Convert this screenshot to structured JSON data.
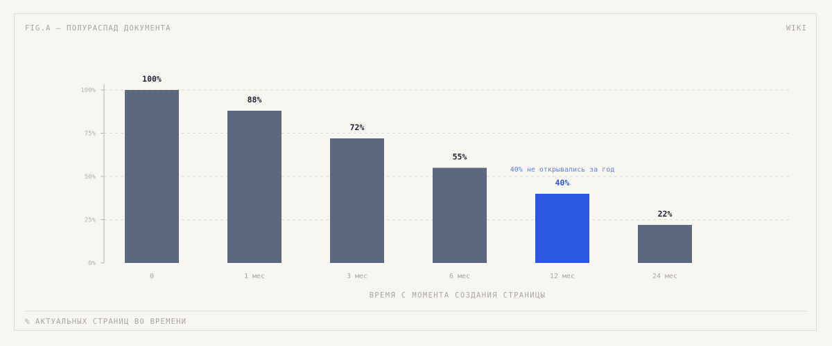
{
  "header": {
    "figure_title": "FIG.A — ПОЛУРАСПАД ДОКУМЕНТА",
    "corner_tag": "WIKI"
  },
  "footer": {
    "caption": "% АКТУАЛЬНЫХ СТРАНИЦ ВО ВРЕМЕНИ"
  },
  "colors": {
    "bar": "#5c687e",
    "highlight_bar": "#2b56e0",
    "annotation": "#5a7fe8",
    "grid": "#dcd9d0",
    "axis": "#b5b2a9"
  },
  "chart_data": {
    "type": "bar",
    "categories": [
      "0",
      "1 мес",
      "3 мес",
      "6 мес",
      "12 мес",
      "24 мес"
    ],
    "values": [
      100,
      88,
      72,
      55,
      40,
      22
    ],
    "value_labels": [
      "100%",
      "88%",
      "72%",
      "55%",
      "40%",
      "22%"
    ],
    "highlight_index": 4,
    "annotation": "40% не открывались за год",
    "xlabel": "ВРЕМЯ С МОМЕНТА СОЗДАНИЯ СТРАНИЦЫ",
    "ylabel": "",
    "ylim": [
      0,
      100
    ],
    "yticks": [
      0,
      25,
      50,
      75,
      100
    ],
    "ytick_labels": [
      "0%",
      "25%",
      "50%",
      "75%",
      "100%"
    ],
    "grid": true
  }
}
